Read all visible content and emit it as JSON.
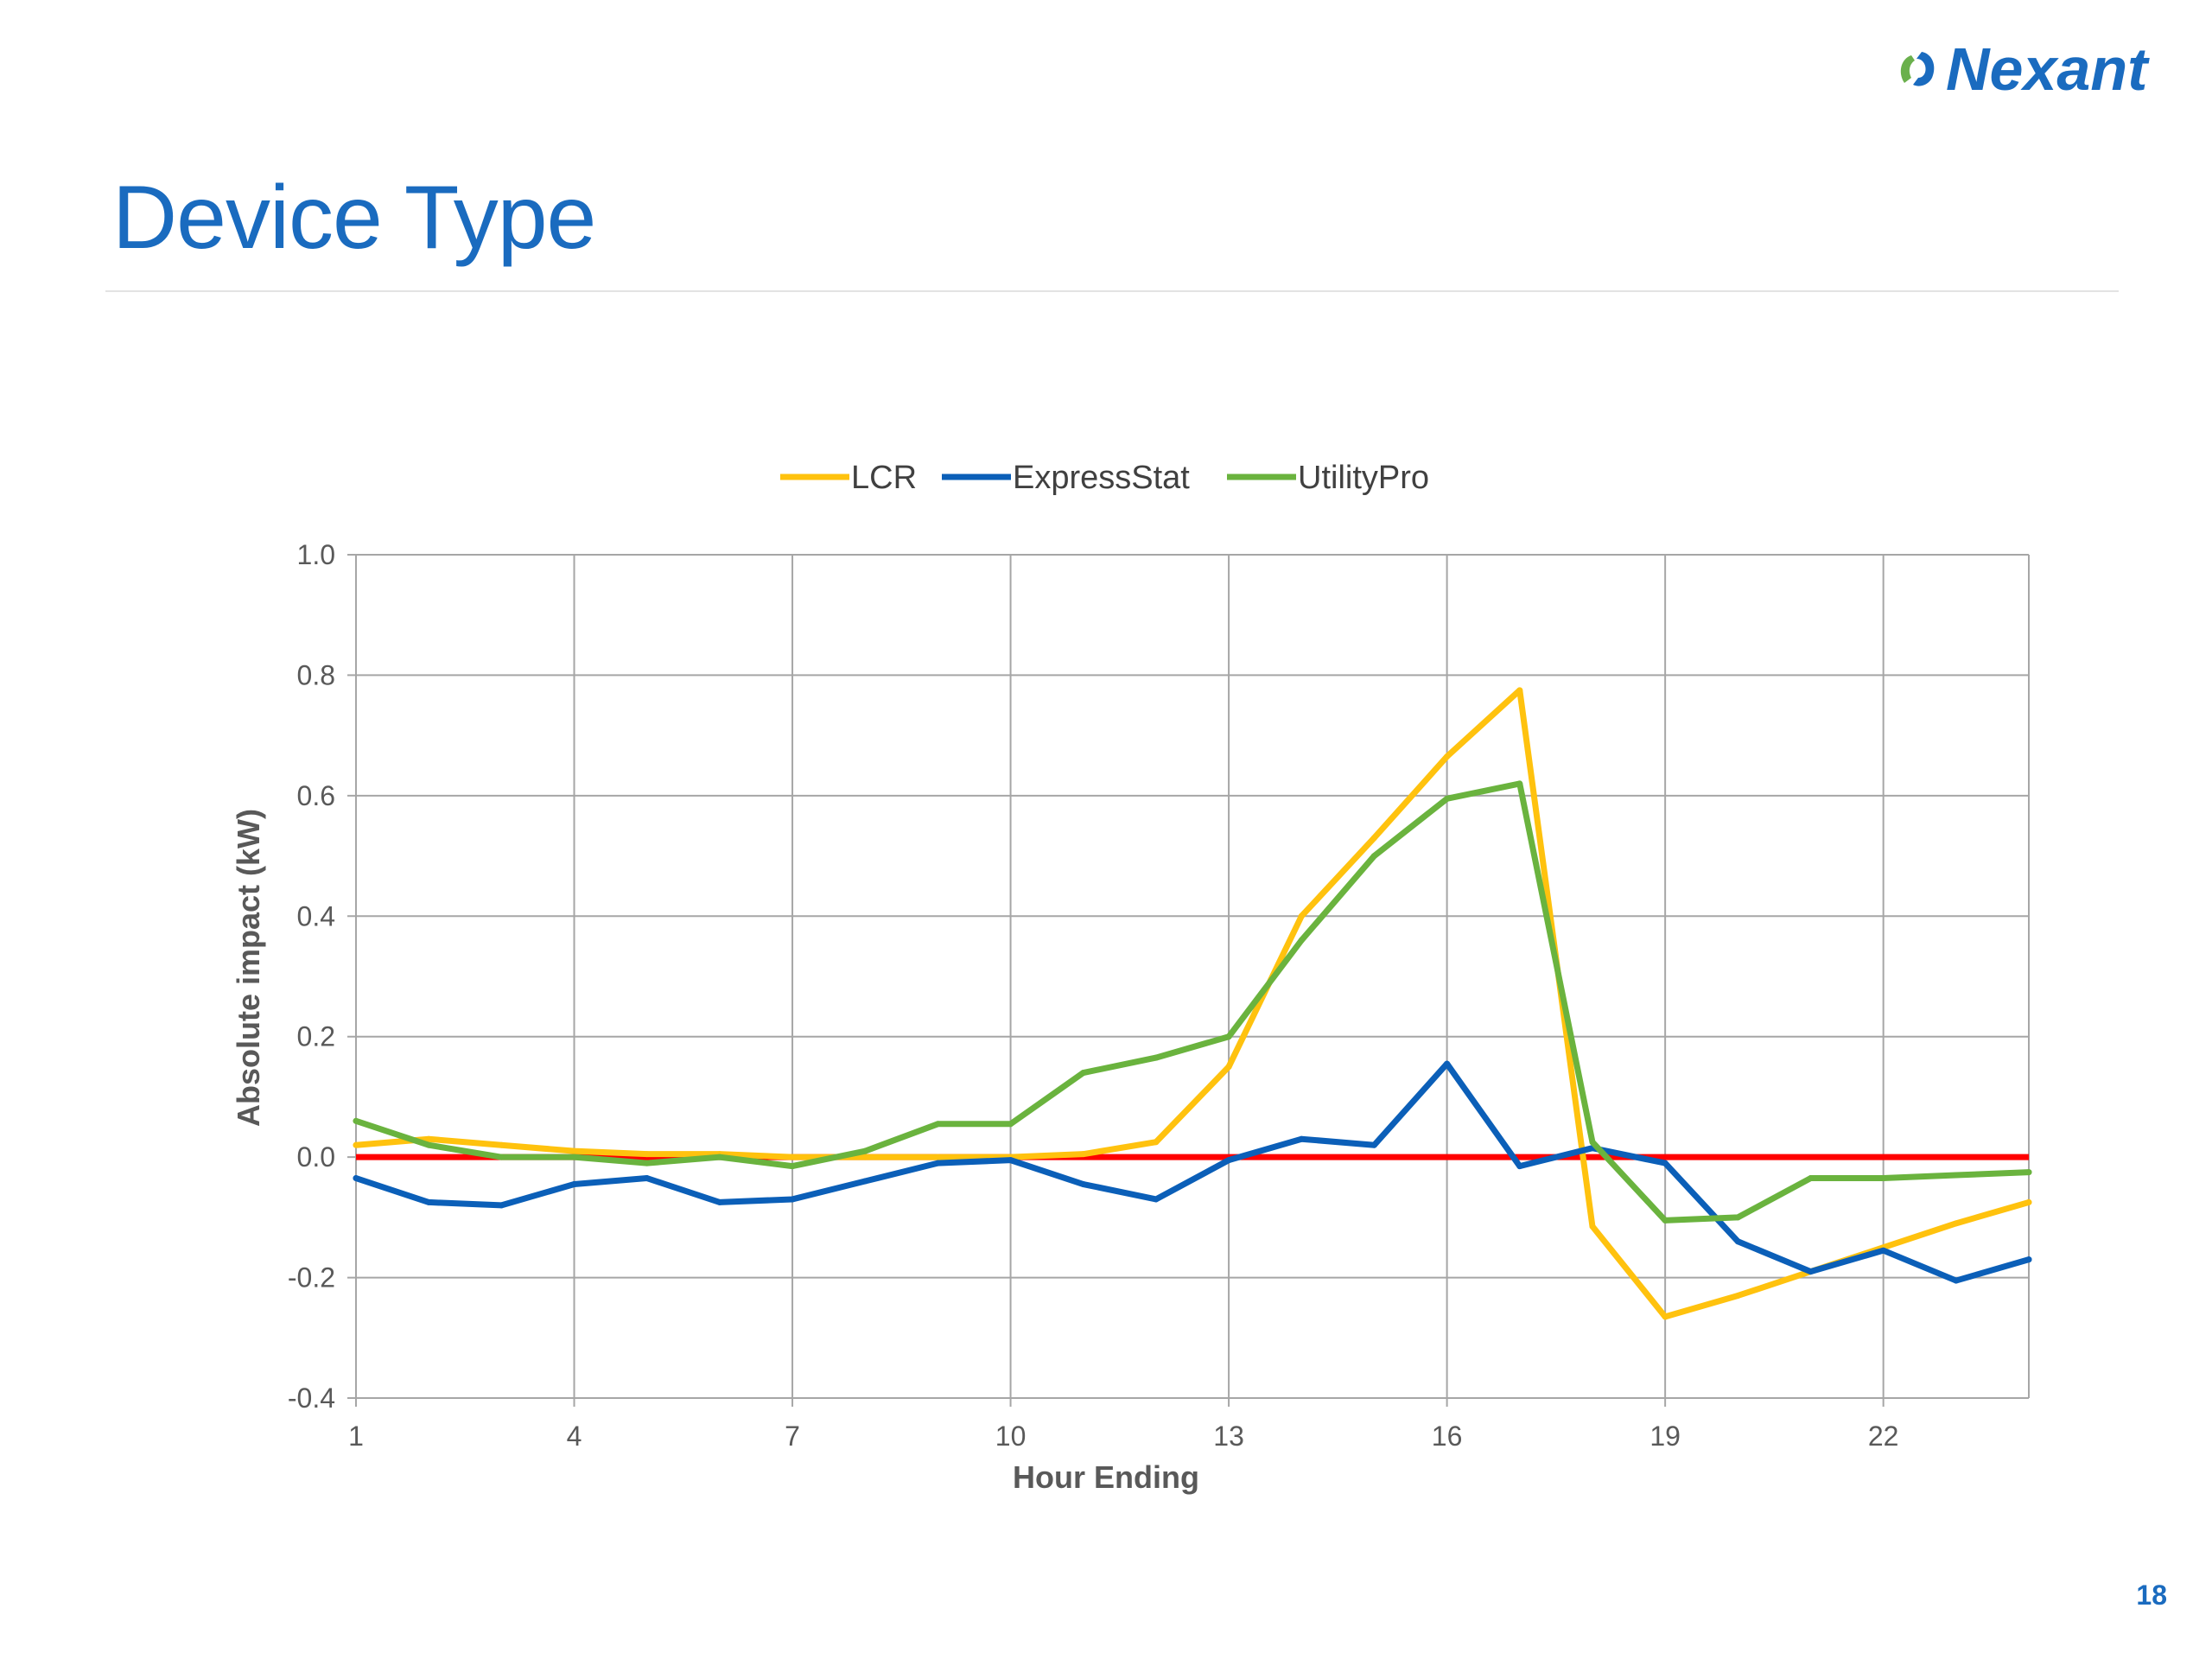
{
  "slide": {
    "title": "Device Type",
    "page_number": "18",
    "logo_text": "Nexant",
    "colors": {
      "title": "#1a6bbf",
      "logo_blue": "#1a6bbf",
      "logo_green": "#6ab04c"
    }
  },
  "chart_data": {
    "type": "line",
    "title": "",
    "xlabel": "Hour Ending",
    "ylabel": "Absolute impact (kW)",
    "x": [
      1,
      2,
      3,
      4,
      5,
      6,
      7,
      8,
      9,
      10,
      11,
      12,
      13,
      14,
      15,
      16,
      17,
      18,
      19,
      20,
      21,
      22,
      23,
      24
    ],
    "x_tick_labels": [
      "1",
      "4",
      "7",
      "10",
      "13",
      "16",
      "19",
      "22"
    ],
    "x_tick_values": [
      1,
      4,
      7,
      10,
      13,
      16,
      19,
      22
    ],
    "xlim": [
      1,
      24
    ],
    "ylim": [
      -0.4,
      1.0
    ],
    "y_ticks": [
      -0.4,
      -0.2,
      0.0,
      0.2,
      0.4,
      0.6,
      0.8,
      1.0
    ],
    "y_tick_labels": [
      "-0.4",
      "-0.2",
      "0.0",
      "0.2",
      "0.4",
      "0.6",
      "0.8",
      "1.0"
    ],
    "grid": true,
    "legend_position": "top-center",
    "reference_line": {
      "y": 0.0,
      "color": "#ff0000"
    },
    "series": [
      {
        "name": "LCR",
        "color": "#ffc20e",
        "values": [
          0.02,
          0.03,
          0.02,
          0.01,
          0.005,
          0.005,
          0.0,
          0.0,
          0.0,
          0.0,
          0.005,
          0.025,
          0.15,
          0.4,
          0.53,
          0.665,
          0.775,
          -0.115,
          -0.265,
          -0.23,
          -0.19,
          -0.15,
          -0.11,
          -0.075
        ]
      },
      {
        "name": "ExpressStat",
        "color": "#0b5fb8",
        "values": [
          -0.035,
          -0.075,
          -0.08,
          -0.045,
          -0.035,
          -0.075,
          -0.07,
          -0.04,
          -0.01,
          -0.005,
          -0.045,
          -0.07,
          -0.005,
          0.03,
          0.02,
          0.155,
          -0.015,
          0.015,
          -0.01,
          -0.14,
          -0.19,
          -0.155,
          -0.205,
          -0.17
        ]
      },
      {
        "name": "UtilityPro",
        "color": "#6ab33e",
        "values": [
          0.06,
          0.02,
          0.0,
          0.0,
          -0.01,
          0.0,
          -0.015,
          0.01,
          0.055,
          0.055,
          0.14,
          0.165,
          0.2,
          0.36,
          0.5,
          0.595,
          0.62,
          0.025,
          -0.105,
          -0.1,
          -0.035,
          -0.035,
          -0.03,
          -0.025
        ]
      }
    ]
  }
}
